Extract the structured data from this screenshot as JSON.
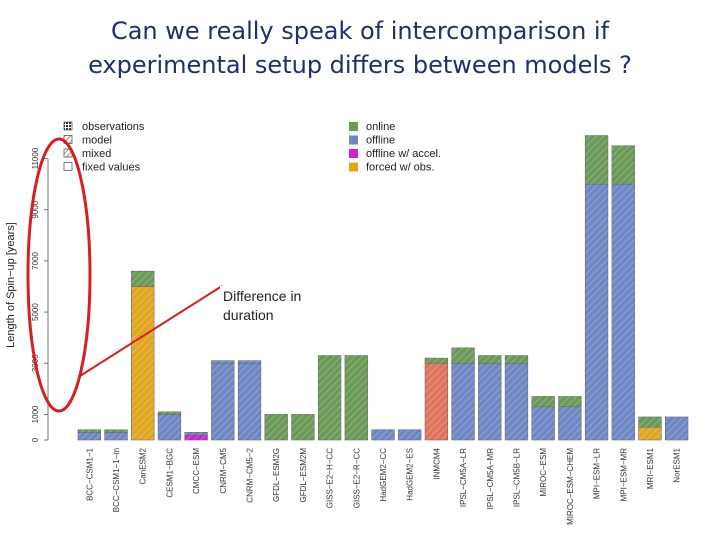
{
  "slide": {
    "title_line1": "Can we really speak of intercomparison if",
    "title_line2": "experimental setup differs between models ?"
  },
  "annotation": {
    "line1": "Difference in",
    "line2": "duration"
  },
  "colors": {
    "online": "#6b9a58",
    "offline": "#6f87c4",
    "offline_accel": "#d21fd2",
    "forced_obs": "#e0a521",
    "highlight": "#e0735e",
    "annotation_red": "#d42020"
  },
  "chart_data": {
    "type": "bar",
    "stacked": true,
    "ylabel": "Length of Spin−up [years]",
    "ylim": [
      0,
      12000
    ],
    "yticks": [
      0,
      1000,
      3000,
      5000,
      7000,
      9000,
      11000
    ],
    "legend_pattern": {
      "title": "",
      "entries": [
        "observations",
        "model",
        "mixed",
        "fixed values"
      ]
    },
    "legend_color": {
      "entries": [
        "online",
        "offline",
        "offline w/ accel.",
        "forced w/ obs."
      ]
    },
    "categories": [
      "BCC−CSM1−1",
      "BCC−CSM1−1−m",
      "CanESM2",
      "CESM1−BGC",
      "CMCC−ESM",
      "CNRM−CM5",
      "CNRM−CM5−2",
      "GFDL−ESM2G",
      "GFDL−ESM2M",
      "GISS−E2−H−CC",
      "GISS−E2−R−CC",
      "HadGEM2−CC",
      "HadGEM2−ES",
      "INMCM4",
      "IPSL−CM5A−LR",
      "IPSL−CM5A−MR",
      "IPSL−CM5B−LR",
      "MIROC−ESM",
      "MIROC−ESM−CHEM",
      "MPI−ESM−LR",
      "MPI−ESM−MR",
      "MRI−ESM1",
      "NorESM1"
    ],
    "series": [
      {
        "values": [
          300,
          300,
          6000,
          1000,
          200,
          3000,
          3000,
          0,
          0,
          0,
          0,
          400,
          400,
          3000,
          3000,
          3000,
          3000,
          1300,
          1300,
          10000,
          10000,
          500,
          0
        ]
      },
      {
        "values": [
          100,
          100,
          600,
          100,
          100,
          100,
          100,
          1000,
          1000,
          3300,
          3300,
          0,
          0,
          200,
          600,
          300,
          300,
          400,
          400,
          1900,
          1500,
          400,
          900
        ]
      }
    ],
    "bar_colors": {
      "bottom": [
        "offline",
        "offline",
        "forced_obs",
        "offline",
        "offline_accel",
        "offline",
        "offline",
        "online",
        "online",
        "online",
        "online",
        "offline",
        "offline",
        "highlight",
        "offline",
        "offline",
        "offline",
        "offline",
        "offline",
        "offline",
        "offline",
        "forced_obs",
        "offline"
      ],
      "top": [
        "online",
        "online",
        "online",
        "online",
        "offline",
        "offline",
        "offline",
        "online",
        "online",
        "online",
        "online",
        "offline",
        "offline",
        "online",
        "online",
        "online",
        "online",
        "online",
        "online",
        "online",
        "online",
        "online",
        "offline"
      ]
    }
  }
}
